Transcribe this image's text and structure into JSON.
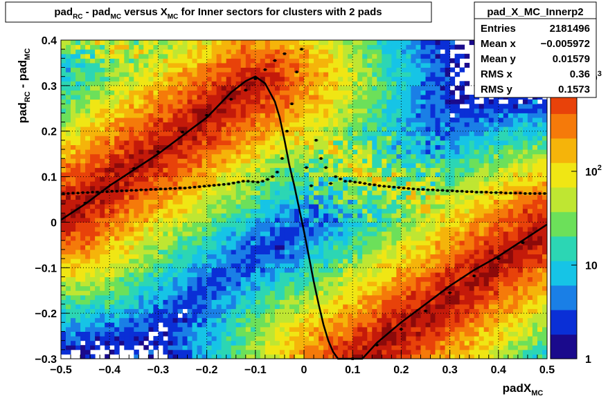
{
  "title": {
    "parts": [
      {
        "t": "pad"
      },
      {
        "t": "RC",
        "sub": true
      },
      {
        "t": " - pad"
      },
      {
        "t": "MC",
        "sub": true
      },
      {
        "t": " versus X"
      },
      {
        "t": "MC",
        "sub": true
      },
      {
        "t": " for Inner sectors for clusters with 2 pads"
      }
    ]
  },
  "stats": {
    "name": "pad_X_MC_Innerp2",
    "rows": [
      {
        "label": "Entries",
        "value": "2181496"
      },
      {
        "label": "Mean x",
        "value": "−0.005972"
      },
      {
        "label": "Mean y",
        "value": "0.01579"
      },
      {
        "label": "RMS x",
        "value": "0.36"
      },
      {
        "label": "RMS y",
        "value": "0.1573"
      }
    ]
  },
  "colors": {
    "palette": [
      "#1a0a8c",
      "#0a2fd6",
      "#1a7fe6",
      "#16c4e6",
      "#2cd6b4",
      "#6ce05a",
      "#bfe632",
      "#f0e614",
      "#f5b40a",
      "#f57a0a",
      "#e8420a",
      "#c41a0a",
      "#8c0a0a"
    ],
    "profile": "#000000",
    "fit": "#000000"
  },
  "chart_data": {
    "type": "heatmap",
    "title": "pad_RC - pad_MC versus X_MC for Inner sectors for clusters with 2 pads",
    "xlabel": "padX_MC",
    "ylabel": "pad_RC - pad_MC",
    "xlim": [
      -0.5,
      0.5
    ],
    "ylim": [
      -0.3,
      0.4
    ],
    "x_ticks": [
      "−0.5",
      "−0.4",
      "−0.3",
      "−0.2",
      "−0.1",
      "0",
      "0.1",
      "0.2",
      "0.3",
      "0.4",
      "0.5"
    ],
    "y_ticks": [
      "−0.3",
      "−0.2",
      "−0.1",
      "0",
      "0.1",
      "0.2",
      "0.3",
      "0.4"
    ],
    "grid": true,
    "z_scale": "log",
    "z_ticks": [
      "1",
      "10",
      "10",
      "10"
    ],
    "z_tick_exponents": [
      "",
      "",
      "2",
      "3"
    ],
    "z_max_exponent": 3.4,
    "density_bands": [
      {
        "from": [
          -0.5,
          0.01
        ],
        "to": [
          -0.1,
          0.31
        ],
        "peak_log10": 3.3
      },
      {
        "from": [
          0.12,
          -0.3
        ],
        "to": [
          0.5,
          -0.01
        ],
        "peak_log10": 3.3
      }
    ],
    "fit_curve": {
      "x": [
        -0.5,
        -0.45,
        -0.4,
        -0.35,
        -0.3,
        -0.25,
        -0.2,
        -0.15,
        -0.12,
        -0.1,
        -0.08,
        -0.06,
        -0.05,
        -0.04,
        -0.03,
        -0.02,
        -0.01,
        0.0,
        0.01,
        0.02,
        0.03,
        0.04,
        0.05,
        0.06,
        0.07,
        0.08,
        0.12,
        0.15,
        0.2,
        0.25,
        0.3,
        0.35,
        0.4,
        0.45,
        0.5
      ],
      "y": [
        0.005,
        0.04,
        0.08,
        0.115,
        0.15,
        0.19,
        0.23,
        0.285,
        0.31,
        0.32,
        0.305,
        0.265,
        0.23,
        0.18,
        0.125,
        0.08,
        0.03,
        -0.02,
        -0.075,
        -0.13,
        -0.18,
        -0.225,
        -0.26,
        -0.285,
        -0.3,
        -0.31,
        -0.3,
        -0.265,
        -0.22,
        -0.18,
        -0.14,
        -0.105,
        -0.075,
        -0.04,
        -0.005
      ]
    },
    "profile_points": {
      "x": [
        -0.495,
        -0.485,
        -0.475,
        -0.465,
        -0.455,
        -0.445,
        -0.435,
        -0.425,
        -0.415,
        -0.405,
        -0.395,
        -0.385,
        -0.375,
        -0.365,
        -0.355,
        -0.345,
        -0.335,
        -0.325,
        -0.315,
        -0.305,
        -0.295,
        -0.285,
        -0.275,
        -0.265,
        -0.255,
        -0.245,
        -0.235,
        -0.225,
        -0.215,
        -0.205,
        -0.195,
        -0.185,
        -0.175,
        -0.165,
        -0.155,
        -0.145,
        -0.135,
        -0.125,
        -0.115,
        -0.105,
        -0.095,
        -0.085,
        -0.075,
        -0.065,
        -0.055,
        -0.045,
        -0.035,
        -0.025,
        -0.015,
        -0.005,
        0.005,
        0.015,
        0.025,
        0.035,
        0.045,
        0.055,
        0.065,
        0.075,
        0.085,
        0.095,
        0.105,
        0.115,
        0.125,
        0.135,
        0.145,
        0.155,
        0.165,
        0.175,
        0.185,
        0.195,
        0.205,
        0.215,
        0.225,
        0.235,
        0.245,
        0.255,
        0.265,
        0.275,
        0.285,
        0.295,
        0.305,
        0.315,
        0.325,
        0.335,
        0.345,
        0.355,
        0.365,
        0.375,
        0.385,
        0.395,
        0.405,
        0.415,
        0.425,
        0.435,
        0.445,
        0.455,
        0.465,
        0.475,
        0.485,
        0.495
      ],
      "y": [
        0.063,
        0.063,
        0.064,
        0.064,
        0.065,
        0.065,
        0.066,
        0.066,
        0.067,
        0.067,
        0.068,
        0.068,
        0.069,
        0.069,
        0.07,
        0.07,
        0.071,
        0.071,
        0.072,
        0.072,
        0.073,
        0.073,
        0.074,
        0.074,
        0.075,
        0.075,
        0.076,
        0.077,
        0.078,
        0.079,
        0.08,
        0.081,
        0.082,
        0.083,
        0.084,
        0.086,
        0.088,
        0.09,
        0.09,
        0.089,
        0.088,
        0.09,
        0.094,
        0.1,
        0.11,
        0.14,
        0.2,
        0.26,
        0.33,
        0.38,
        0.12,
        0.08,
        0.18,
        0.14,
        0.12,
        0.085,
        0.1,
        0.095,
        0.09,
        0.09,
        0.088,
        0.087,
        0.085,
        0.083,
        0.082,
        0.08,
        0.079,
        0.078,
        0.077,
        0.076,
        0.075,
        0.074,
        0.073,
        0.072,
        0.072,
        0.071,
        0.071,
        0.07,
        0.07,
        0.069,
        0.069,
        0.068,
        0.068,
        0.067,
        0.067,
        0.066,
        0.066,
        0.066,
        0.065,
        0.065,
        0.065,
        0.064,
        0.064,
        0.064,
        0.064,
        0.063,
        0.063,
        0.063,
        0.063,
        0.063
      ]
    },
    "band_points": [
      {
        "x": -0.45,
        "y": 0.042
      },
      {
        "x": -0.35,
        "y": 0.118
      },
      {
        "x": -0.3,
        "y": 0.155
      },
      {
        "x": -0.25,
        "y": 0.198
      },
      {
        "x": -0.2,
        "y": 0.235
      },
      {
        "x": -0.15,
        "y": 0.27
      },
      {
        "x": -0.12,
        "y": 0.29
      },
      {
        "x": -0.1,
        "y": 0.315
      },
      {
        "x": -0.08,
        "y": 0.335
      },
      {
        "x": -0.06,
        "y": 0.355
      },
      {
        "x": -0.04,
        "y": 0.37
      },
      {
        "x": 0.1,
        "y": -0.3
      },
      {
        "x": 0.15,
        "y": -0.27
      },
      {
        "x": 0.2,
        "y": -0.235
      },
      {
        "x": 0.25,
        "y": -0.195
      },
      {
        "x": 0.3,
        "y": -0.155
      },
      {
        "x": 0.35,
        "y": -0.118
      },
      {
        "x": 0.4,
        "y": -0.08
      },
      {
        "x": 0.45,
        "y": -0.045
      }
    ]
  }
}
